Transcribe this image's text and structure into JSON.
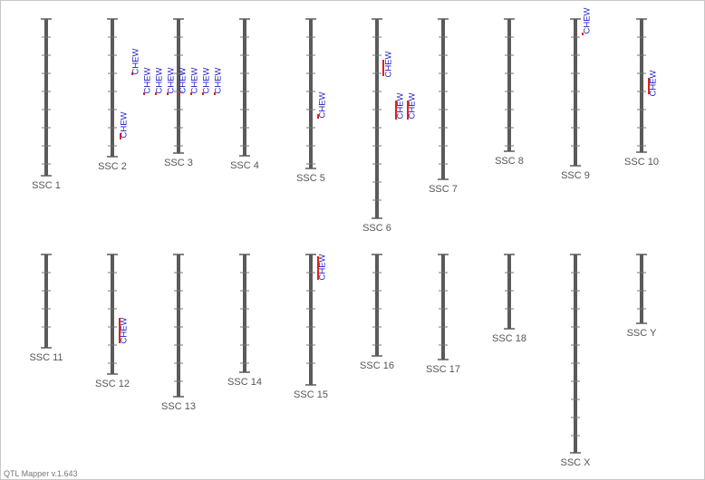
{
  "chromosomes": [
    {
      "label": "SSC 1",
      "qtls": []
    },
    {
      "label": "SSC 2",
      "qtls": [
        "CHEW",
        "CHEW"
      ]
    },
    {
      "label": "SSC 3",
      "qtls": [
        "CHEW",
        "CHEW",
        "CHEW",
        "CHEW",
        "CHEW",
        "CHEW",
        "CHEW"
      ]
    },
    {
      "label": "SSC 4",
      "qtls": []
    },
    {
      "label": "SSC 5",
      "qtls": [
        "CHEW"
      ]
    },
    {
      "label": "SSC 6",
      "qtls": [
        "CHEW",
        "CHEW",
        "CHEW"
      ]
    },
    {
      "label": "SSC 7",
      "qtls": []
    },
    {
      "label": "SSC 8",
      "qtls": []
    },
    {
      "label": "SSC 9",
      "qtls": [
        "CHEW"
      ]
    },
    {
      "label": "SSC 10",
      "qtls": [
        "CHEW"
      ]
    },
    {
      "label": "SSC 11",
      "qtls": []
    },
    {
      "label": "SSC 12",
      "qtls": [
        "CHEW"
      ]
    },
    {
      "label": "SSC 13",
      "qtls": []
    },
    {
      "label": "SSC 14",
      "qtls": []
    },
    {
      "label": "SSC 15",
      "qtls": [
        "CHEW"
      ]
    },
    {
      "label": "SSC 16",
      "qtls": []
    },
    {
      "label": "SSC 17",
      "qtls": []
    },
    {
      "label": "SSC 18",
      "qtls": []
    },
    {
      "label": "SSC X",
      "qtls": []
    },
    {
      "label": "SSC Y",
      "qtls": []
    }
  ],
  "footer": "QTL Mapper v.1.643"
}
